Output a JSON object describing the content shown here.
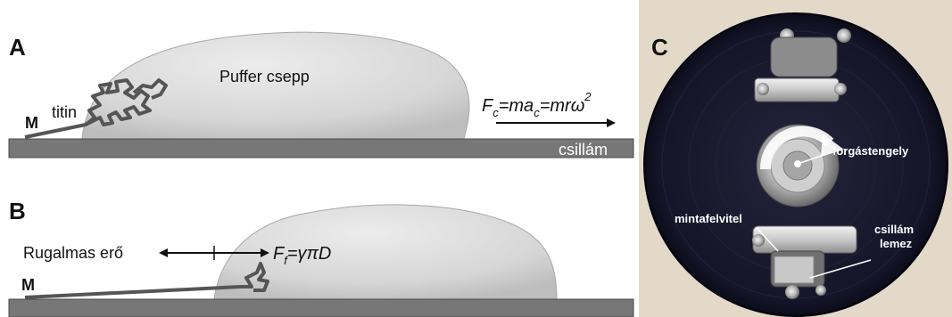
{
  "panel_a": {
    "letter": "A",
    "droplet_label": "Puffer csepp",
    "molecule_label": "titin",
    "end_label": "M",
    "surface_label": "csillám",
    "force_eq": {
      "F": "F",
      "F_sub": "c",
      "eq1": "=ma",
      "eq1_sub": "c",
      "eq2": "=mrω",
      "eq2_sup": "2"
    }
  },
  "panel_b": {
    "letter": "B",
    "elastic_label": "Rugalmas erő",
    "end_label": "M",
    "force_eq": {
      "F": "F",
      "F_sub": "f",
      "rest": "=γπD"
    }
  },
  "panel_c": {
    "letter": "C",
    "labels": {
      "axis": "forgástengely",
      "deposit": "mintafelvitel",
      "mica_line1": "csillám",
      "mica_line2": "lemez"
    }
  },
  "colors": {
    "surface": "#777777",
    "droplet": "#dcdcdc",
    "polymer": "#555555",
    "photo_bg": "#e8e0d2",
    "disk": "#15152a"
  }
}
